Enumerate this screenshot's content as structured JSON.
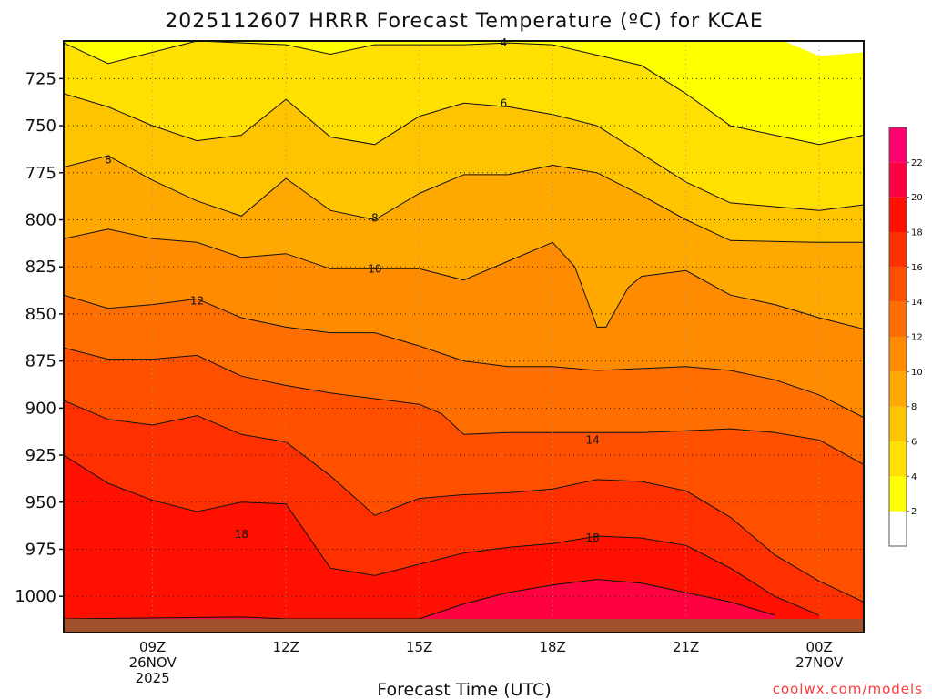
{
  "chart_data": {
    "type": "heatmap",
    "title": "2025112607 HRRR Forecast Temperature (ºC) for KCAE",
    "xlabel": "Forecast Time (UTC)",
    "credit": "coolwx.com/models",
    "x_ticks": [
      {
        "label": "09Z",
        "sub1": "26NOV",
        "sub2": "2025"
      },
      {
        "label": "12Z",
        "sub1": "",
        "sub2": ""
      },
      {
        "label": "15Z",
        "sub1": "",
        "sub2": ""
      },
      {
        "label": "18Z",
        "sub1": "",
        "sub2": ""
      },
      {
        "label": "21Z",
        "sub1": "",
        "sub2": ""
      },
      {
        "label": "00Z",
        "sub1": "27NOV",
        "sub2": ""
      }
    ],
    "x_tick_hours": [
      9,
      12,
      15,
      18,
      21,
      24
    ],
    "xlim_hours": [
      7,
      25
    ],
    "y_ticks": [
      "725",
      "750",
      "775",
      "800",
      "825",
      "850",
      "875",
      "900",
      "925",
      "950",
      "975",
      "1000"
    ],
    "y_tick_values": [
      725,
      750,
      775,
      800,
      825,
      850,
      875,
      900,
      925,
      950,
      975,
      1000
    ],
    "ylim_hPa": [
      705,
      1012
    ],
    "grid": true,
    "colorbar": {
      "levels": [
        2,
        4,
        6,
        8,
        10,
        12,
        14,
        16,
        18,
        20,
        22
      ],
      "level_labels": [
        "2",
        "4",
        "6",
        "8",
        "10",
        "12",
        "14",
        "16",
        "18",
        "20",
        "22"
      ],
      "colors": [
        "#ffffff",
        "#ffff00",
        "#ffe000",
        "#ffc400",
        "#ffa800",
        "#ff8c00",
        "#ff6e00",
        "#ff5000",
        "#ff3000",
        "#ff1000",
        "#ff0040",
        "#ff0070"
      ]
    },
    "contour_labels": [
      {
        "text": "4",
        "hour": 16.9,
        "hPa": 706
      },
      {
        "text": "6",
        "hour": 16.9,
        "hPa": 738
      },
      {
        "text": "8",
        "hour": 8.0,
        "hPa": 768
      },
      {
        "text": "8",
        "hour": 14.0,
        "hPa": 799
      },
      {
        "text": "10",
        "hour": 14.0,
        "hPa": 826
      },
      {
        "text": "12",
        "hour": 10.0,
        "hPa": 843
      },
      {
        "text": "14",
        "hour": 18.9,
        "hPa": 917
      },
      {
        "text": "18",
        "hour": 11.0,
        "hPa": 967
      },
      {
        "text": "18",
        "hour": 18.9,
        "hPa": 969
      }
    ],
    "isotherms": [
      {
        "value": 4,
        "points": [
          [
            7,
            706
          ],
          [
            8,
            717
          ],
          [
            9,
            711
          ],
          [
            10,
            705
          ],
          [
            12,
            707
          ],
          [
            13,
            712
          ],
          [
            14,
            707
          ],
          [
            16,
            707
          ],
          [
            17,
            706
          ],
          [
            18,
            707
          ],
          [
            20,
            718
          ],
          [
            21,
            733
          ],
          [
            22,
            750
          ],
          [
            24,
            760
          ],
          [
            25,
            755
          ]
        ]
      },
      {
        "value": 6,
        "points": [
          [
            7,
            733
          ],
          [
            8,
            740
          ],
          [
            9,
            750
          ],
          [
            10,
            758
          ],
          [
            11,
            755
          ],
          [
            12,
            736
          ],
          [
            13,
            756
          ],
          [
            14,
            760
          ],
          [
            15,
            745
          ],
          [
            16,
            738
          ],
          [
            17,
            740
          ],
          [
            18,
            744
          ],
          [
            19,
            750
          ],
          [
            20,
            765
          ],
          [
            21,
            780
          ],
          [
            22,
            791
          ],
          [
            24,
            795
          ],
          [
            25,
            792
          ]
        ]
      },
      {
        "value": 8,
        "points": [
          [
            7,
            772
          ],
          [
            8,
            766
          ],
          [
            9,
            779
          ],
          [
            10,
            790
          ],
          [
            11,
            798
          ],
          [
            12,
            778
          ],
          [
            13,
            795
          ],
          [
            14,
            800
          ],
          [
            15,
            786
          ],
          [
            16,
            776
          ],
          [
            17,
            776
          ],
          [
            18,
            771
          ],
          [
            19,
            775
          ],
          [
            20,
            787
          ],
          [
            21,
            800
          ],
          [
            22,
            811
          ],
          [
            24,
            812
          ],
          [
            25,
            812
          ]
        ]
      },
      {
        "value": 10,
        "points": [
          [
            7,
            810
          ],
          [
            8,
            805
          ],
          [
            9,
            810
          ],
          [
            10,
            812
          ],
          [
            11,
            820
          ],
          [
            12,
            818
          ],
          [
            13,
            826
          ],
          [
            14,
            826
          ],
          [
            15,
            826
          ],
          [
            16,
            832
          ],
          [
            17,
            822
          ],
          [
            18,
            812
          ],
          [
            18.5,
            825
          ],
          [
            19,
            857
          ],
          [
            19.2,
            857
          ],
          [
            19.7,
            836
          ],
          [
            20,
            830
          ],
          [
            21,
            827
          ],
          [
            22,
            840
          ],
          [
            23,
            845
          ],
          [
            24,
            852
          ],
          [
            25,
            858
          ]
        ]
      },
      {
        "value": 12,
        "points": [
          [
            7,
            840
          ],
          [
            8,
            847
          ],
          [
            9,
            845
          ],
          [
            10,
            842
          ],
          [
            11,
            852
          ],
          [
            12,
            857
          ],
          [
            13,
            860
          ],
          [
            14,
            860
          ],
          [
            15,
            867
          ],
          [
            16,
            875
          ],
          [
            17,
            878
          ],
          [
            18,
            878
          ],
          [
            19,
            880
          ],
          [
            20,
            879
          ],
          [
            21,
            878
          ],
          [
            22,
            880
          ],
          [
            23,
            885
          ],
          [
            24,
            893
          ],
          [
            25,
            905
          ]
        ]
      },
      {
        "value": 14,
        "points": [
          [
            7,
            868
          ],
          [
            8,
            874
          ],
          [
            9,
            874
          ],
          [
            10,
            872
          ],
          [
            11,
            883
          ],
          [
            12,
            888
          ],
          [
            13,
            892
          ],
          [
            14,
            895
          ],
          [
            15,
            898
          ],
          [
            15.5,
            903
          ],
          [
            16,
            914
          ],
          [
            17,
            913
          ],
          [
            18,
            913
          ],
          [
            19,
            913
          ],
          [
            20,
            913
          ],
          [
            21,
            912
          ],
          [
            22,
            911
          ],
          [
            23,
            913
          ],
          [
            24,
            917
          ],
          [
            25,
            930
          ]
        ]
      },
      {
        "value": 16,
        "points": [
          [
            7,
            896
          ],
          [
            8,
            906
          ],
          [
            9,
            909
          ],
          [
            10,
            904
          ],
          [
            11,
            914
          ],
          [
            12,
            918
          ],
          [
            13,
            936
          ],
          [
            14,
            957
          ],
          [
            15,
            948
          ],
          [
            16,
            946
          ],
          [
            17,
            945
          ],
          [
            18,
            943
          ],
          [
            19,
            938
          ],
          [
            20,
            939
          ],
          [
            21,
            944
          ],
          [
            22,
            958
          ],
          [
            23,
            978
          ],
          [
            24,
            992
          ],
          [
            25,
            1003
          ]
        ]
      },
      {
        "value": 18,
        "points": [
          [
            7,
            925
          ],
          [
            8,
            940
          ],
          [
            9,
            949
          ],
          [
            10,
            955
          ],
          [
            11,
            950
          ],
          [
            12,
            951
          ],
          [
            13,
            985
          ],
          [
            14,
            989
          ],
          [
            15,
            983
          ],
          [
            16,
            977
          ],
          [
            17,
            974
          ],
          [
            18,
            972
          ],
          [
            19,
            968
          ],
          [
            20,
            969
          ],
          [
            21,
            973
          ],
          [
            22,
            985
          ],
          [
            23,
            1000
          ],
          [
            24,
            1010
          ]
        ]
      },
      {
        "value": 20,
        "points": [
          [
            7,
            1012
          ],
          [
            11,
            1011
          ],
          [
            12,
            1012
          ],
          [
            15,
            1012
          ],
          [
            16,
            1004
          ],
          [
            17,
            998
          ],
          [
            18,
            994
          ],
          [
            19,
            991
          ],
          [
            20,
            993
          ],
          [
            21,
            998
          ],
          [
            22,
            1003
          ],
          [
            23,
            1010
          ]
        ]
      }
    ]
  }
}
